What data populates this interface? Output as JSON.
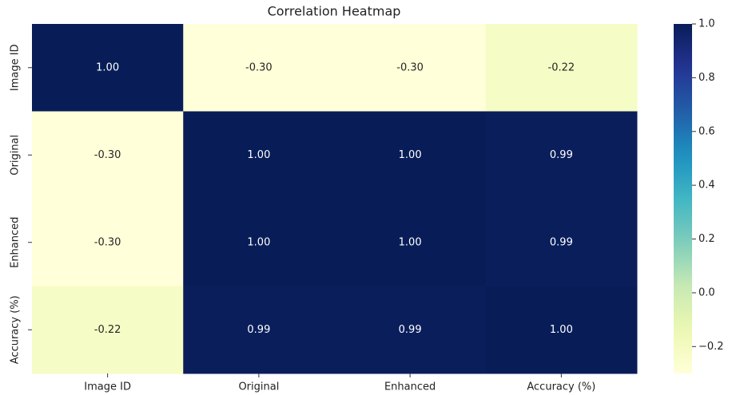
{
  "chart_data": {
    "type": "heatmap",
    "title": "Correlation Heatmap",
    "x_categories": [
      "Image ID",
      "Original",
      "Enhanced",
      "Accuracy (%)"
    ],
    "y_categories": [
      "Image ID",
      "Original",
      "Enhanced",
      "Accuracy (%)"
    ],
    "values": [
      [
        1.0,
        -0.3,
        -0.3,
        -0.22
      ],
      [
        -0.3,
        1.0,
        1.0,
        0.99
      ],
      [
        -0.3,
        1.0,
        1.0,
        0.99
      ],
      [
        -0.22,
        0.99,
        0.99,
        1.0
      ]
    ],
    "value_labels": [
      [
        "1.00",
        "-0.30",
        "-0.30",
        "-0.22"
      ],
      [
        "-0.30",
        "1.00",
        "1.00",
        "0.99"
      ],
      [
        "-0.30",
        "1.00",
        "1.00",
        "0.99"
      ],
      [
        "-0.22",
        "0.99",
        "0.99",
        "1.00"
      ]
    ],
    "colormap": "YlGnBu",
    "clim": [
      -0.3,
      1.0
    ],
    "cticks": [
      {
        "value": 1.0,
        "label": "1.0"
      },
      {
        "value": 0.8,
        "label": "0.8"
      },
      {
        "value": 0.6,
        "label": "0.6"
      },
      {
        "value": 0.4,
        "label": "0.4"
      },
      {
        "value": 0.2,
        "label": "0.2"
      },
      {
        "value": 0.0,
        "label": "0.0"
      },
      {
        "value": -0.2,
        "label": "−0.2"
      }
    ]
  }
}
